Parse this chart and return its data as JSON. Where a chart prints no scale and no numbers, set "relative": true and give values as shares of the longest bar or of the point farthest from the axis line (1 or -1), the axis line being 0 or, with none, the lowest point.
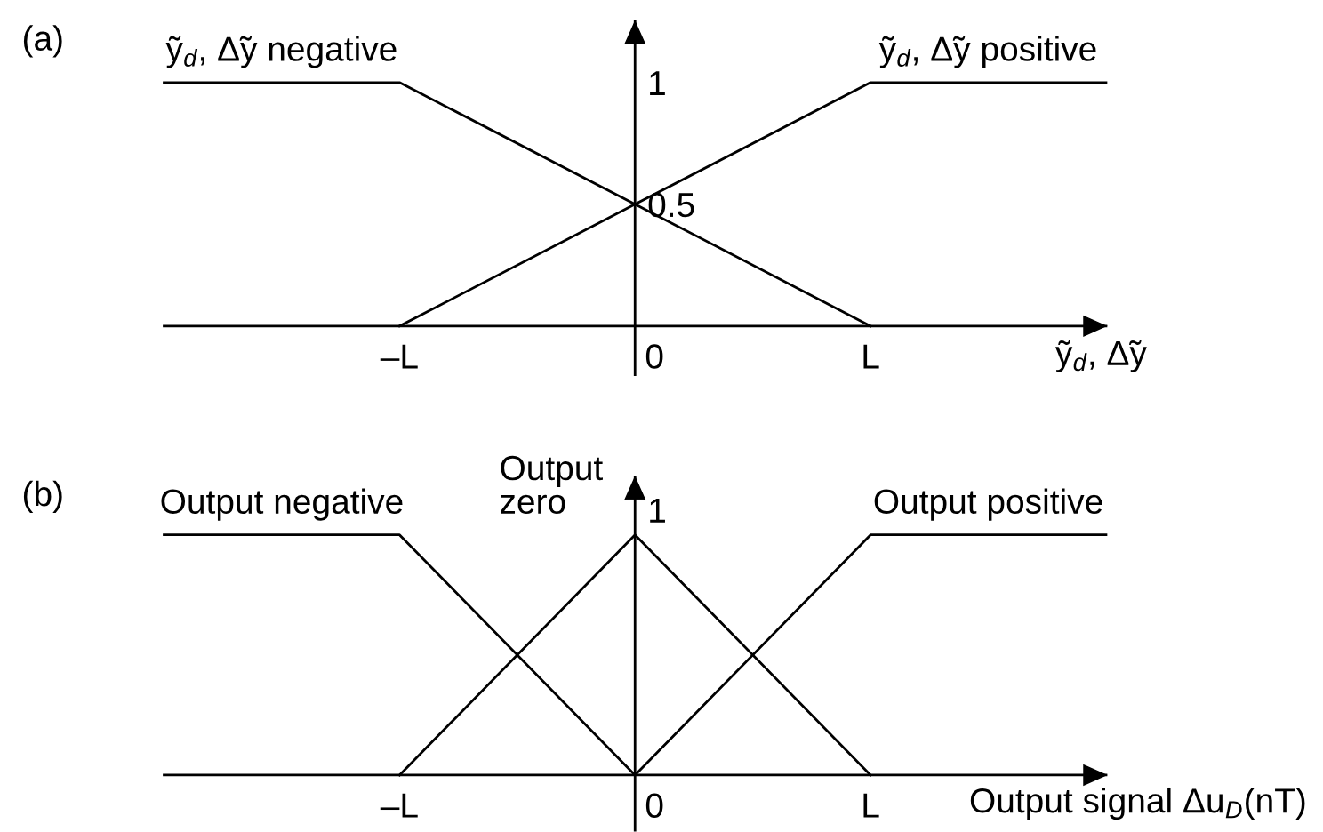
{
  "chart_data": [
    {
      "type": "line",
      "title": "(a)",
      "xlabel": "ỹ$_{d}$, Δ̃y",
      "categories": [
        null,
        "–L",
        "0",
        "L",
        null
      ],
      "ylim": [
        -0.2,
        1.25
      ],
      "yticks": [
        0.5,
        1
      ],
      "series": [
        {
          "name": "ỹ$_{d}$, Δ̃y negative",
          "color": "#000000",
          "values": [
            1,
            1,
            0.5,
            0,
            null
          ]
        },
        {
          "name": "ỹ$_{d}$, Δ̃y positive",
          "color": "#000000",
          "values": [
            null,
            0,
            0.5,
            1,
            1
          ]
        }
      ]
    },
    {
      "type": "line",
      "title": "(b)",
      "xlabel": "Output signal Δu$_{D}$(nT)",
      "categories": [
        null,
        "–L",
        "0",
        "L",
        null
      ],
      "relative": true,
      "annotations": [
        {
          "text": "1",
          "x": "0",
          "y": 1
        }
      ],
      "series": [
        {
          "name": "Output negative",
          "color": "#000000",
          "values": [
            1,
            1,
            0,
            null,
            null
          ]
        },
        {
          "name": "Output zero",
          "color": "#000000",
          "values": [
            null,
            0,
            1,
            0,
            null
          ]
        },
        {
          "name": "Output positive",
          "color": "#000000",
          "values": [
            null,
            null,
            0,
            1,
            1
          ]
        }
      ]
    }
  ]
}
